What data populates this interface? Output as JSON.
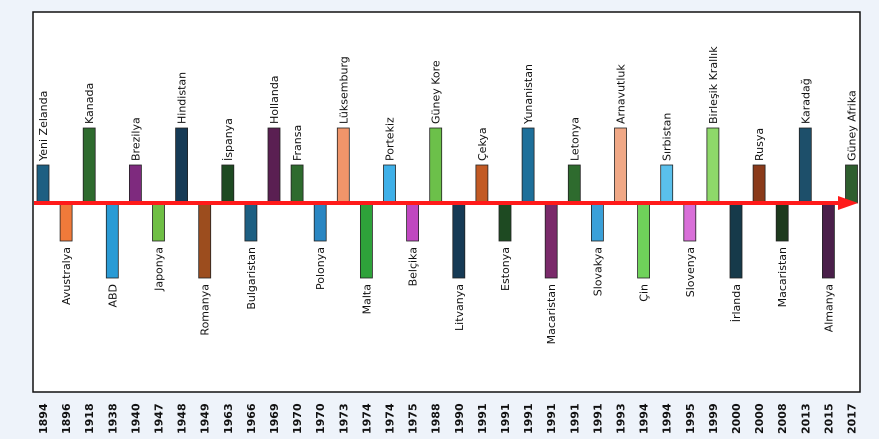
{
  "timeline": {
    "axis_color": "#ff1a1a",
    "entries": [
      {
        "year": "1894",
        "country": "Yeni Zelanda",
        "side": "up",
        "level": 1,
        "color": "#1d5f82"
      },
      {
        "year": "1896",
        "country": "Avustralya",
        "side": "down",
        "level": 1,
        "color": "#f07a3a"
      },
      {
        "year": "1918",
        "country": "Kanada",
        "side": "up",
        "level": 2,
        "color": "#2e6b2e"
      },
      {
        "year": "1938",
        "country": "ABD",
        "side": "down",
        "level": 2,
        "color": "#2a9bd5"
      },
      {
        "year": "1940",
        "country": "Brezilya",
        "side": "up",
        "level": 1,
        "color": "#7e2a7e"
      },
      {
        "year": "1947",
        "country": "Japonya",
        "side": "down",
        "level": 1,
        "color": "#6fbf45"
      },
      {
        "year": "1948",
        "country": "Hindistan",
        "side": "up",
        "level": 2,
        "color": "#163a55"
      },
      {
        "year": "1949",
        "country": "Romanya",
        "side": "down",
        "level": 2,
        "color": "#9c4d1e"
      },
      {
        "year": "1963",
        "country": "İspanya",
        "side": "up",
        "level": 1,
        "color": "#1e4a22"
      },
      {
        "year": "1966",
        "country": "Bulgaristan",
        "side": "down",
        "level": 1,
        "color": "#1d5f82"
      },
      {
        "year": "1969",
        "country": "Hollanda",
        "side": "up",
        "level": 2,
        "color": "#5a1f52"
      },
      {
        "year": "1970",
        "country": "Fransa",
        "side": "up",
        "level": 1,
        "color": "#2e6b2e"
      },
      {
        "year": "1970",
        "country": "Polonya",
        "side": "down",
        "level": 1,
        "color": "#2a86c2"
      },
      {
        "year": "1973",
        "country": "Lüksemburg",
        "side": "up",
        "level": 2,
        "color": "#f0956a"
      },
      {
        "year": "1974",
        "country": "Malta",
        "side": "down",
        "level": 2,
        "color": "#2ea23a"
      },
      {
        "year": "1974",
        "country": "Portekiz",
        "side": "up",
        "level": 1,
        "color": "#3fb0e8"
      },
      {
        "year": "1975",
        "country": "Belçika",
        "side": "down",
        "level": 1,
        "color": "#c047c0"
      },
      {
        "year": "1988",
        "country": "Güney Kore",
        "side": "up",
        "level": 2,
        "color": "#6cc04a"
      },
      {
        "year": "1990",
        "country": "Litvanya",
        "side": "down",
        "level": 2,
        "color": "#163a55"
      },
      {
        "year": "1991",
        "country": "Çekya",
        "side": "up",
        "level": 1,
        "color": "#c25a24"
      },
      {
        "year": "1991",
        "country": "Estonya",
        "side": "down",
        "level": 1,
        "color": "#1e4a22"
      },
      {
        "year": "1991",
        "country": "Yunanistan",
        "side": "up",
        "level": 2,
        "color": "#1d6f9a"
      },
      {
        "year": "1991",
        "country": "Macaristan",
        "side": "down",
        "level": 2,
        "color": "#7a2a6a"
      },
      {
        "year": "1991",
        "country": "Letonya",
        "side": "up",
        "level": 1,
        "color": "#2e6b2e"
      },
      {
        "year": "1991",
        "country": "Slovakya",
        "side": "down",
        "level": 1,
        "color": "#3aa0d8"
      },
      {
        "year": "1993",
        "country": "Arnavutluk",
        "side": "up",
        "level": 2,
        "color": "#f0a886"
      },
      {
        "year": "1994",
        "country": "Çin",
        "side": "down",
        "level": 2,
        "color": "#6fd25a"
      },
      {
        "year": "1994",
        "country": "Sırbistan",
        "side": "up",
        "level": 1,
        "color": "#5ac0ec"
      },
      {
        "year": "1995",
        "country": "Slovenya",
        "side": "down",
        "level": 1,
        "color": "#d86fd8"
      },
      {
        "year": "1999",
        "country": "Birleşik Krallık",
        "side": "up",
        "level": 2,
        "color": "#8ed86a"
      },
      {
        "year": "2000",
        "country": "İrlanda",
        "side": "down",
        "level": 2,
        "color": "#163a4a"
      },
      {
        "year": "2000",
        "country": "Rusya",
        "side": "up",
        "level": 1,
        "color": "#8a3a1a"
      },
      {
        "year": "2008",
        "country": "Macaristan",
        "side": "down",
        "level": 1,
        "color": "#1e3a1e"
      },
      {
        "year": "2013",
        "country": "Karadağ",
        "side": "up",
        "level": 2,
        "color": "#1d4f6a"
      },
      {
        "year": "2015",
        "country": "Almanya",
        "side": "down",
        "level": 2,
        "color": "#4a1f4a"
      },
      {
        "year": "2017",
        "country": "Güney Afrika",
        "side": "up",
        "level": 1,
        "color": "#2e5e2e"
      }
    ]
  }
}
